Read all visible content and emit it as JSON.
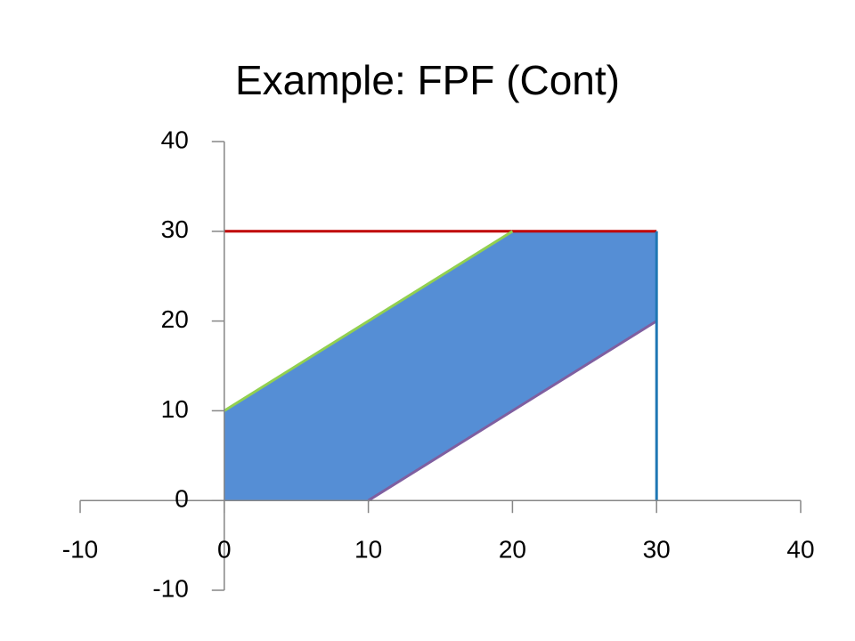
{
  "chart_data": {
    "type": "line",
    "title": "Example: FPF (Cont)",
    "xlim": [
      -10,
      40
    ],
    "xticks": [
      -10,
      0,
      10,
      20,
      30,
      40
    ],
    "ylim": [
      -10,
      40
    ],
    "yticks": [
      -10,
      0,
      10,
      20,
      30,
      40
    ],
    "series": [
      {
        "color": "#558ed5",
        "fill": true,
        "x": [
          0,
          0,
          20,
          30,
          30,
          10
        ],
        "values": [
          0,
          10,
          30,
          30,
          20,
          0
        ]
      },
      {
        "color": "#c00000",
        "x": [
          0,
          30
        ],
        "values": [
          30,
          30
        ]
      },
      {
        "color": "#92d050",
        "x": [
          0,
          20
        ],
        "values": [
          10,
          30
        ]
      },
      {
        "color": "#7f5fa0",
        "x": [
          10,
          30
        ],
        "values": [
          0,
          20
        ]
      },
      {
        "color": "#1f77b4",
        "x": [
          30,
          30
        ],
        "values": [
          0,
          30
        ]
      }
    ]
  }
}
